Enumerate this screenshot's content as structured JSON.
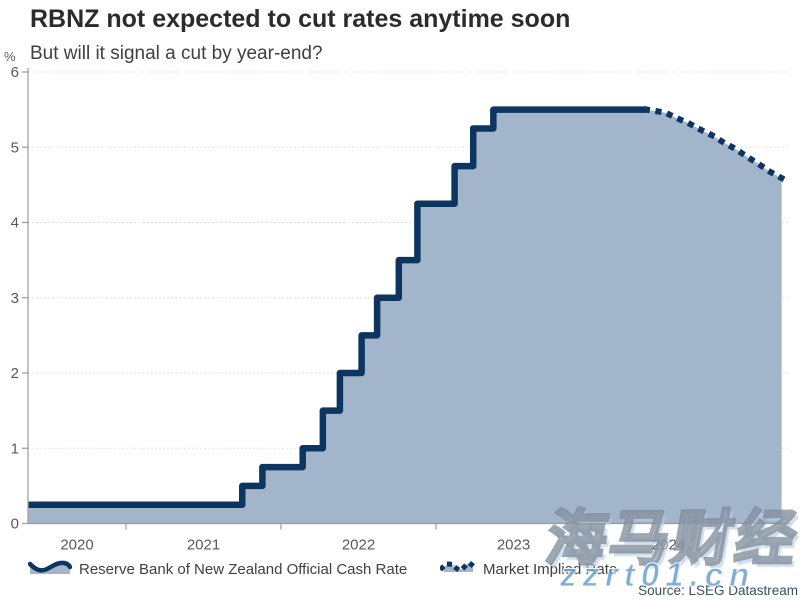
{
  "header": {
    "title": "RBNZ not expected to cut rates anytime soon",
    "subtitle": "But will it signal a cut by year-end?"
  },
  "chart_data": {
    "type": "area",
    "title": "RBNZ not expected to cut rates anytime soon",
    "subtitle": "But will it signal a cut by year-end?",
    "ylabel": "%",
    "ylim": [
      0,
      6
    ],
    "y_ticks": [
      0,
      1,
      2,
      3,
      4,
      5,
      6
    ],
    "grid": true,
    "x_axis": {
      "start": 2020.37,
      "end": 2025.28,
      "tick_year_starts": [
        2021,
        2022,
        2023,
        2024,
        2025
      ],
      "labels": [
        {
          "text": "2020",
          "center": 2020.684
        },
        {
          "text": "2021",
          "center": 2021.5
        },
        {
          "text": "2022",
          "center": 2022.5
        },
        {
          "text": "2023",
          "center": 2023.5
        },
        {
          "text": "2024",
          "center": 2024.5
        }
      ]
    },
    "series": [
      {
        "name": "Reserve Bank of New Zealand Official Cash Rate",
        "style": "solid-step",
        "steps": [
          [
            2020.37,
            0.25
          ],
          [
            2021.75,
            0.5
          ],
          [
            2021.88,
            0.75
          ],
          [
            2022.14,
            1.0
          ],
          [
            2022.27,
            1.5
          ],
          [
            2022.38,
            2.0
          ],
          [
            2022.52,
            2.5
          ],
          [
            2022.62,
            3.0
          ],
          [
            2022.76,
            3.5
          ],
          [
            2022.88,
            4.25
          ],
          [
            2023.12,
            4.75
          ],
          [
            2023.24,
            5.25
          ],
          [
            2023.37,
            5.5
          ]
        ],
        "end_x": 2024.36
      },
      {
        "name": "Market Implied Rate",
        "style": "dotted",
        "points": [
          [
            2024.36,
            5.5
          ],
          [
            2024.48,
            5.46
          ],
          [
            2024.55,
            5.39
          ],
          [
            2024.63,
            5.32
          ],
          [
            2024.7,
            5.24
          ],
          [
            2024.78,
            5.16
          ],
          [
            2024.85,
            5.07
          ],
          [
            2024.93,
            4.98
          ],
          [
            2025.01,
            4.87
          ],
          [
            2025.08,
            4.78
          ],
          [
            2025.15,
            4.68
          ],
          [
            2025.23,
            4.59
          ]
        ]
      }
    ],
    "colors": {
      "line": "#0c3560",
      "fill": "#a3b5ca",
      "grid": "#d6d6d6",
      "axis": "#9b9b9b",
      "tick_label": "#595959"
    }
  },
  "legend": {
    "items": [
      {
        "label": "Reserve Bank of New Zealand Official Cash Rate",
        "style": "solid"
      },
      {
        "label": "Market Implied Rate",
        "style": "dotted"
      }
    ]
  },
  "source": "Source: LSEG Datastream",
  "watermark": {
    "cjk": "海马财经",
    "url": "zzrt01.cn"
  }
}
